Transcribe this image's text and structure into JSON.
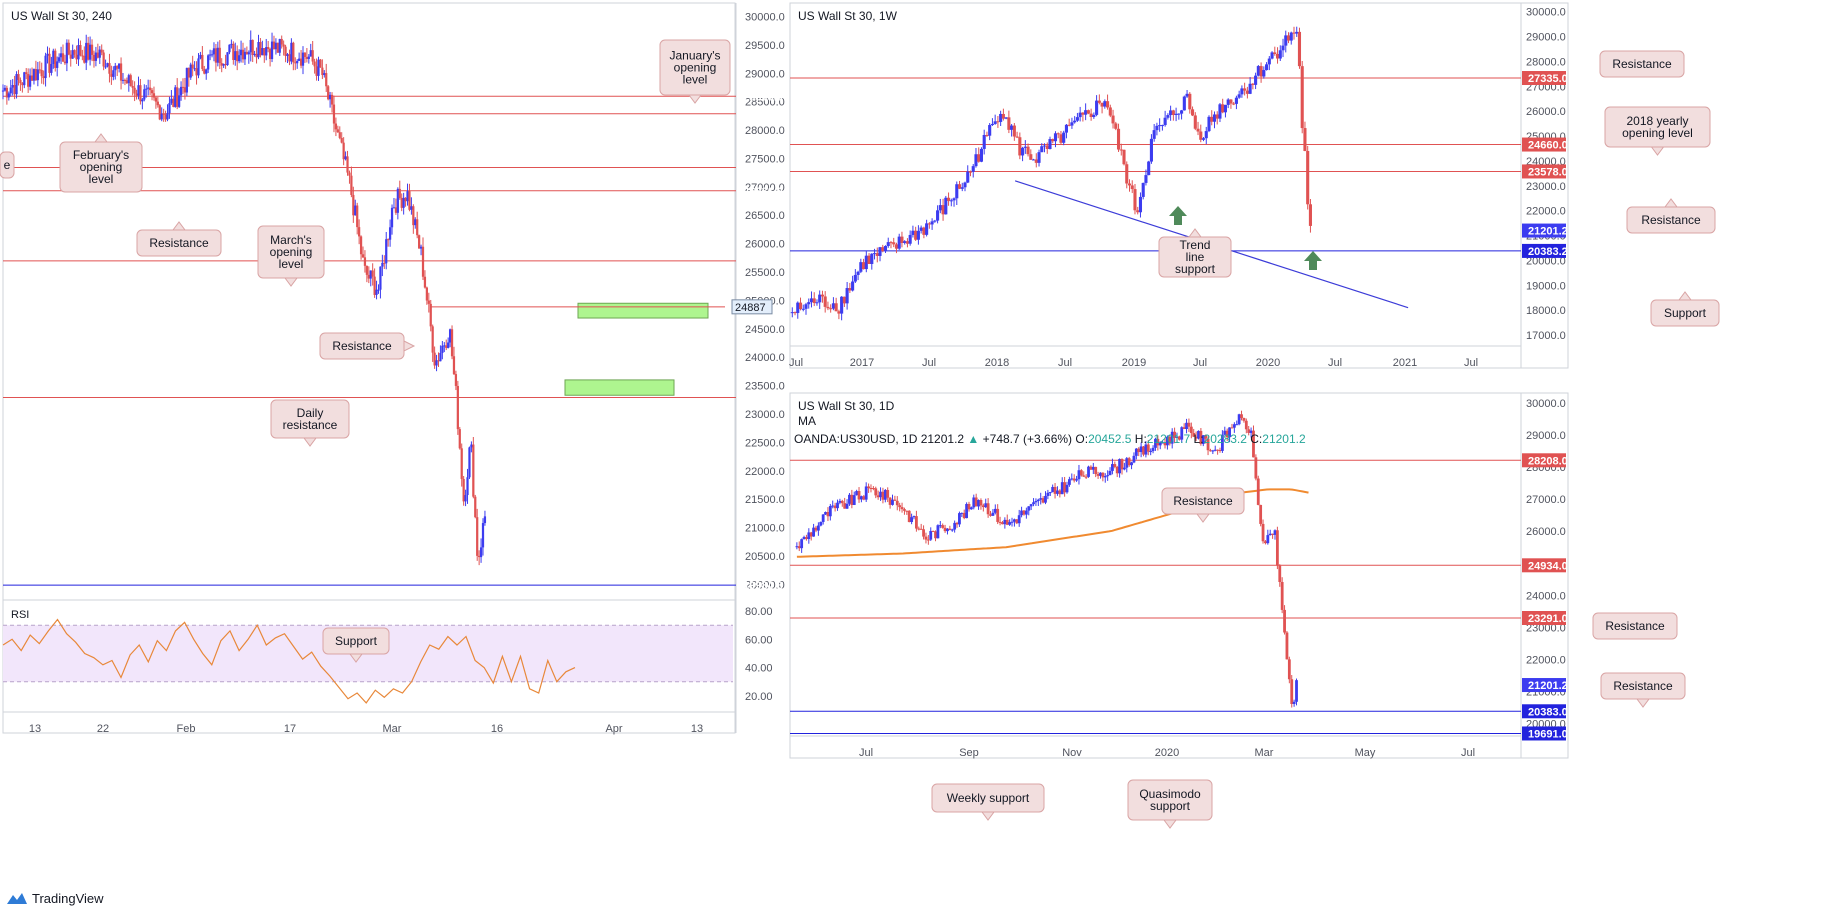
{
  "app": {
    "brand": "TradingView"
  },
  "colors": {
    "up": "#3c3cf0",
    "down": "#e05252",
    "resistance": "#e05252",
    "support": "#2222dd",
    "trend": "#3c3cd8",
    "ma": "#f08a30",
    "rsi": "#e8883a",
    "rsi_band": "#f2e6fb",
    "callout_bg": "#f2dede",
    "callout_border": "#d9a4a4",
    "zone": "#aef58f",
    "arrow": "#4f8a5a"
  },
  "charts": [
    {
      "id": "h4",
      "title": "US Wall St 30, 240",
      "x_ticks": [
        "13",
        "22",
        "Feb",
        "17",
        "Mar",
        "16",
        "Apr",
        "13"
      ],
      "y_ticks": [
        "30000.0",
        "29500.0",
        "29000.0",
        "28500.0",
        "28000.0",
        "27500.0",
        "27000.0",
        "26500.0",
        "26000.0",
        "25500.0",
        "25000.0",
        "24500.0",
        "24000.0",
        "23500.0",
        "23000.0",
        "22500.0",
        "22000.0",
        "21500.0",
        "21000.0",
        "20500.0",
        "20000.0"
      ],
      "levels": [
        {
          "label": "28595.0",
          "kind": "resistance"
        },
        {
          "label": "28287.0",
          "kind": "resistance"
        },
        {
          "label": "27340.8",
          "kind": "resistance"
        },
        {
          "label": "26931.0",
          "kind": "resistance"
        },
        {
          "label": "25696.0",
          "kind": "resistance"
        },
        {
          "label": "23291.0",
          "kind": "resistance"
        },
        {
          "label": "21201.2",
          "kind": "price"
        },
        {
          "label": "19984.8",
          "kind": "support"
        }
      ],
      "small_label": "24887",
      "callouts": [
        {
          "text": "January's opening level"
        },
        {
          "text": "February's opening level"
        },
        {
          "text": "Resistance"
        },
        {
          "text": "March's opening level"
        },
        {
          "text": "Resistance"
        },
        {
          "text": "Daily resistance"
        },
        {
          "text": "Support"
        },
        {
          "text": "e"
        }
      ],
      "rsi": {
        "label": "RSI",
        "ticks": [
          "80.00",
          "60.00",
          "40.00",
          "20.00"
        ],
        "band": [
          30,
          70
        ]
      }
    },
    {
      "id": "weekly",
      "title": "US Wall St 30, 1W",
      "x_ticks": [
        "Jul",
        "2017",
        "Jul",
        "2018",
        "Jul",
        "2019",
        "Jul",
        "2020",
        "Jul",
        "2021",
        "Jul"
      ],
      "y_ticks": [
        "30000.0",
        "29000.0",
        "28000.0",
        "27000.0",
        "26000.0",
        "25000.0",
        "24000.0",
        "23000.0",
        "22000.0",
        "21000.0",
        "20000.0",
        "19000.0",
        "18000.0",
        "17000.0"
      ],
      "levels": [
        {
          "label": "27335.0",
          "kind": "resistance"
        },
        {
          "label": "24660.0",
          "kind": "resistance"
        },
        {
          "label": "23578.0",
          "kind": "resistance"
        },
        {
          "label": "21201.2",
          "kind": "price"
        },
        {
          "label": "20383.2",
          "kind": "support"
        }
      ],
      "callouts": [
        {
          "text": "Resistance"
        },
        {
          "text": "2018 yearly opening level"
        },
        {
          "text": "Resistance"
        },
        {
          "text": "Trend line support"
        },
        {
          "text": "Support"
        }
      ]
    },
    {
      "id": "daily",
      "title": "US Wall St 30, 1D",
      "indicator": "MA",
      "x_ticks": [
        "Jul",
        "Sep",
        "Nov",
        "2020",
        "Mar",
        "May",
        "Jul"
      ],
      "y_ticks": [
        "30000.0",
        "29000.0",
        "28000.0",
        "27000.0",
        "26000.0",
        "25000.0",
        "24000.0",
        "23000.0",
        "22000.0",
        "21000.0",
        "20000.0"
      ],
      "levels": [
        {
          "label": "28208.0",
          "kind": "resistance"
        },
        {
          "label": "24934.0",
          "kind": "resistance"
        },
        {
          "label": "23291.0",
          "kind": "resistance"
        },
        {
          "label": "21201.2",
          "kind": "price"
        },
        {
          "label": "20383.0",
          "kind": "support"
        },
        {
          "label": "19691.0",
          "kind": "support"
        }
      ],
      "callouts": [
        {
          "text": "Resistance"
        },
        {
          "text": "Resistance"
        },
        {
          "text": "Resistance"
        },
        {
          "text": "Weekly support"
        },
        {
          "text": "Quasimodo support"
        }
      ]
    }
  ],
  "quote_bar": {
    "symbol": "OANDA:US30USD, 1D",
    "last": "21201.2",
    "change": "+748.7 (+3.66%)",
    "o_label": "O:",
    "o": "20452.5",
    "h_label": "H:",
    "h": "21201.7",
    "l_label": "L:",
    "l": "20283.2",
    "c_label": "C:",
    "c": "21201.2"
  },
  "chart_data": [
    {
      "type": "candlestick",
      "title": "US Wall St 30, 240",
      "ylim": [
        19900,
        30150
      ],
      "close_path": [
        [
          "2020-01-08",
          28700
        ],
        [
          "2020-01-11",
          28900
        ],
        [
          "2020-01-15",
          29200
        ],
        [
          "2020-01-18",
          29400
        ],
        [
          "2020-01-22",
          29300
        ],
        [
          "2020-01-25",
          28900
        ],
        [
          "2020-01-28",
          28600
        ],
        [
          "2020-01-31",
          28300
        ],
        [
          "2020-02-04",
          29100
        ],
        [
          "2020-02-07",
          29300
        ],
        [
          "2020-02-10",
          29400
        ],
        [
          "2020-02-13",
          29500
        ],
        [
          "2020-02-17",
          29400
        ],
        [
          "2020-02-20",
          29300
        ],
        [
          "2020-02-22",
          29000
        ],
        [
          "2020-02-24",
          28000
        ],
        [
          "2020-02-26",
          27000
        ],
        [
          "2020-02-28",
          25500
        ],
        [
          "2020-03-01",
          25200
        ],
        [
          "2020-03-03",
          26700
        ],
        [
          "2020-03-05",
          26900
        ],
        [
          "2020-03-07",
          25800
        ],
        [
          "2020-03-09",
          23900
        ],
        [
          "2020-03-11",
          24500
        ],
        [
          "2020-03-12",
          23200
        ],
        [
          "2020-03-13",
          21500
        ],
        [
          "2020-03-14",
          22500
        ],
        [
          "2020-03-15",
          20400
        ],
        [
          "2020-03-16",
          21200
        ]
      ],
      "levels": [
        28595.0,
        28287.0,
        27340.8,
        26931.0,
        25696.0,
        24887,
        23291.0,
        19984.8
      ],
      "last": 21201.2,
      "zones": [
        [
          24690,
          24950
        ],
        [
          23330,
          23600
        ]
      ],
      "rsi": {
        "ylim": [
          10,
          85
        ],
        "values": [
          56,
          60,
          52,
          63,
          57,
          66,
          74,
          64,
          58,
          50,
          47,
          42,
          45,
          33,
          49,
          56,
          44,
          59,
          52,
          66,
          72,
          60,
          50,
          42,
          59,
          66,
          52,
          60,
          70,
          56,
          61,
          64,
          55,
          46,
          51,
          41,
          34,
          26,
          18,
          22,
          15,
          24,
          19,
          25,
          22,
          30,
          44,
          56,
          53,
          62,
          56,
          62,
          45,
          40,
          29,
          48,
          30,
          48,
          25,
          22,
          45,
          30,
          37,
          40
        ]
      }
    },
    {
      "type": "candlestick",
      "title": "US Wall St 30, 1W",
      "ylim": [
        16600,
        30150
      ],
      "close_path": [
        [
          "2016-07-01",
          17900
        ],
        [
          "2016-09-01",
          18400
        ],
        [
          "2016-11-01",
          18200
        ],
        [
          "2017-01-01",
          19900
        ],
        [
          "2017-04-01",
          20600
        ],
        [
          "2017-07-01",
          21500
        ],
        [
          "2017-10-01",
          23300
        ],
        [
          "2018-01-01",
          26200
        ],
        [
          "2018-02-15",
          24500
        ],
        [
          "2018-04-01",
          24100
        ],
        [
          "2018-07-01",
          25300
        ],
        [
          "2018-10-01",
          26500
        ],
        [
          "2018-12-20",
          21900
        ],
        [
          "2019-02-01",
          25000
        ],
        [
          "2019-05-01",
          26500
        ],
        [
          "2019-06-01",
          25000
        ],
        [
          "2019-08-01",
          26200
        ],
        [
          "2019-10-01",
          26900
        ],
        [
          "2020-01-01",
          28600
        ],
        [
          "2020-02-15",
          29300
        ],
        [
          "2020-02-28",
          25300
        ],
        [
          "2020-03-10",
          23500
        ],
        [
          "2020-03-16",
          20300
        ],
        [
          "2020-03-20",
          21200
        ]
      ],
      "levels": [
        27335.0,
        24660.0,
        23578.0,
        20383.2
      ],
      "last": 21201.2,
      "trend_line": [
        [
          "2018-02-05",
          23200
        ],
        [
          "2020-12-01",
          18100
        ]
      ]
    },
    {
      "type": "candlestick",
      "title": "US Wall St 30, 1D",
      "indicator": "MA",
      "ylim": [
        19550,
        30150
      ],
      "close_path": [
        [
          "2019-06-01",
          25500
        ],
        [
          "2019-06-20",
          26600
        ],
        [
          "2019-07-15",
          27300
        ],
        [
          "2019-08-01",
          26800
        ],
        [
          "2019-08-15",
          25800
        ],
        [
          "2019-09-01",
          26300
        ],
        [
          "2019-09-15",
          27000
        ],
        [
          "2019-10-01",
          26200
        ],
        [
          "2019-10-20",
          26900
        ],
        [
          "2019-11-15",
          27800
        ],
        [
          "2019-12-01",
          27900
        ],
        [
          "2019-12-20",
          28500
        ],
        [
          "2020-01-15",
          29200
        ],
        [
          "2020-01-31",
          28500
        ],
        [
          "2020-02-12",
          29500
        ],
        [
          "2020-02-20",
          29200
        ],
        [
          "2020-02-28",
          25400
        ],
        [
          "2020-03-05",
          26100
        ],
        [
          "2020-03-09",
          23800
        ],
        [
          "2020-03-16",
          20300
        ],
        [
          "2020-03-18",
          21200
        ]
      ],
      "ma": [
        [
          "2019-06-01",
          25200
        ],
        [
          "2019-08-01",
          25300
        ],
        [
          "2019-10-01",
          25500
        ],
        [
          "2019-12-01",
          26000
        ],
        [
          "2020-01-15",
          26700
        ],
        [
          "2020-02-15",
          27200
        ],
        [
          "2020-03-01",
          27300
        ],
        [
          "2020-03-15",
          27300
        ],
        [
          "2020-03-25",
          27200
        ]
      ],
      "levels": [
        28208.0,
        24934.0,
        23291.0,
        20383.0,
        19691.0
      ],
      "last": 21201.2
    }
  ]
}
